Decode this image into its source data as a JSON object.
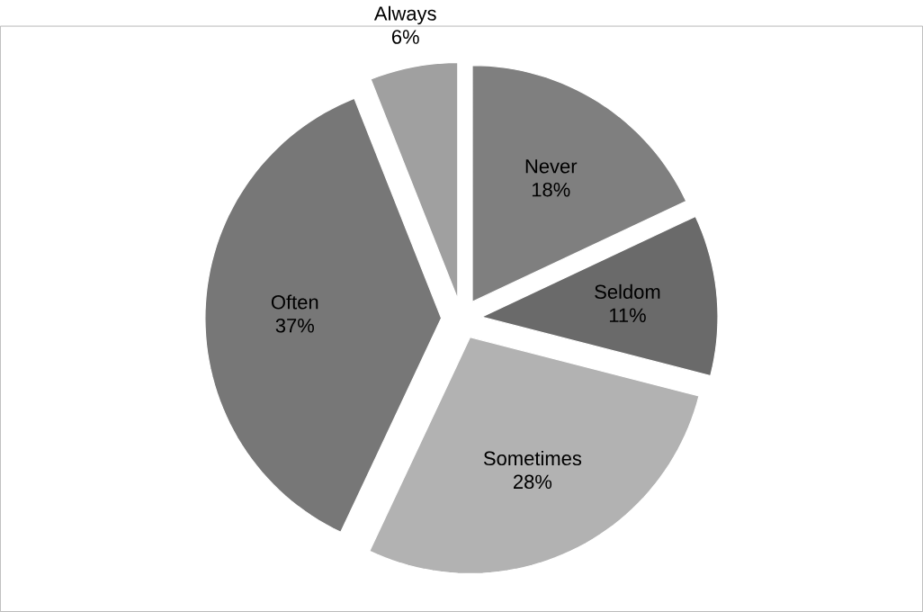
{
  "chart_data": {
    "type": "pie",
    "categories": [
      "Never",
      "Seldom",
      "Sometimes",
      "Often",
      "Always"
    ],
    "values": [
      18,
      11,
      28,
      37,
      6
    ],
    "value_labels": [
      "18%",
      "11%",
      "28%",
      "37%",
      "6%"
    ],
    "colors": [
      "#7f7f7f",
      "#6a6a6a",
      "#b2b2b2",
      "#777777",
      "#a0a0a0"
    ]
  }
}
